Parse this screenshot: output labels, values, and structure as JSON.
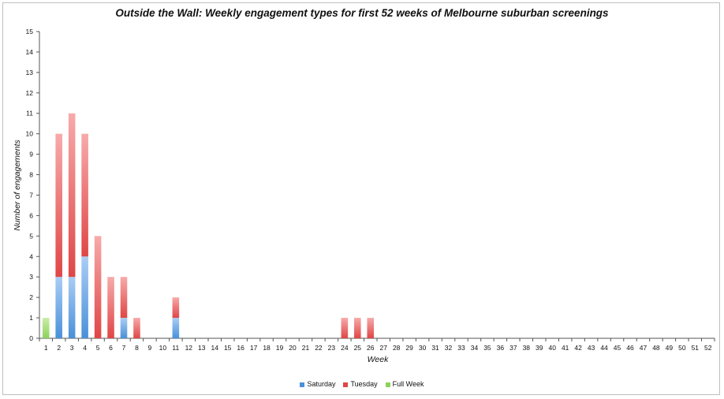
{
  "chart_data": {
    "type": "bar",
    "stacked": true,
    "title": "Outside the Wall: Weekly engagement types for first 52 weeks of Melbourne suburban screenings",
    "xlabel": "Week",
    "ylabel": "Number of engagements",
    "ylim": [
      0,
      15
    ],
    "yticks": [
      "0",
      "1",
      "2",
      "3",
      "4",
      "5",
      "6",
      "7",
      "8",
      "9",
      "10",
      "11",
      "12",
      "13",
      "14",
      "15"
    ],
    "categories": [
      "1",
      "2",
      "3",
      "4",
      "5",
      "6",
      "7",
      "8",
      "9",
      "10",
      "11",
      "12",
      "13",
      "14",
      "15",
      "16",
      "17",
      "18",
      "19",
      "20",
      "21",
      "22",
      "23",
      "24",
      "25",
      "26",
      "27",
      "28",
      "29",
      "30",
      "31",
      "32",
      "33",
      "34",
      "35",
      "36",
      "37",
      "38",
      "39",
      "40",
      "41",
      "42",
      "43",
      "44",
      "45",
      "46",
      "47",
      "48",
      "49",
      "50",
      "51",
      "52"
    ],
    "series": [
      {
        "name": "Saturday",
        "color": "#4a90d9",
        "light": "#a9cdf5",
        "values": [
          0,
          3,
          3,
          4,
          0,
          0,
          1,
          0,
          0,
          0,
          1,
          0,
          0,
          0,
          0,
          0,
          0,
          0,
          0,
          0,
          0,
          0,
          0,
          0,
          0,
          0,
          0,
          0,
          0,
          0,
          0,
          0,
          0,
          0,
          0,
          0,
          0,
          0,
          0,
          0,
          0,
          0,
          0,
          0,
          0,
          0,
          0,
          0,
          0,
          0,
          0,
          0
        ]
      },
      {
        "name": "Tuesday",
        "color": "#e04646",
        "light": "#f7aaaa",
        "values": [
          0,
          7,
          8,
          6,
          5,
          3,
          2,
          1,
          0,
          0,
          1,
          0,
          0,
          0,
          0,
          0,
          0,
          0,
          0,
          0,
          0,
          0,
          0,
          1,
          1,
          1,
          0,
          0,
          0,
          0,
          0,
          0,
          0,
          0,
          0,
          0,
          0,
          0,
          0,
          0,
          0,
          0,
          0,
          0,
          0,
          0,
          0,
          0,
          0,
          0,
          0,
          0
        ]
      },
      {
        "name": "Full Week",
        "color": "#8ed15a",
        "light": "#c9eda8",
        "values": [
          1,
          0,
          0,
          0,
          0,
          0,
          0,
          0,
          0,
          0,
          0,
          0,
          0,
          0,
          0,
          0,
          0,
          0,
          0,
          0,
          0,
          0,
          0,
          0,
          0,
          0,
          0,
          0,
          0,
          0,
          0,
          0,
          0,
          0,
          0,
          0,
          0,
          0,
          0,
          0,
          0,
          0,
          0,
          0,
          0,
          0,
          0,
          0,
          0,
          0,
          0,
          0
        ]
      }
    ],
    "grid": false,
    "legend_position": "bottom"
  }
}
